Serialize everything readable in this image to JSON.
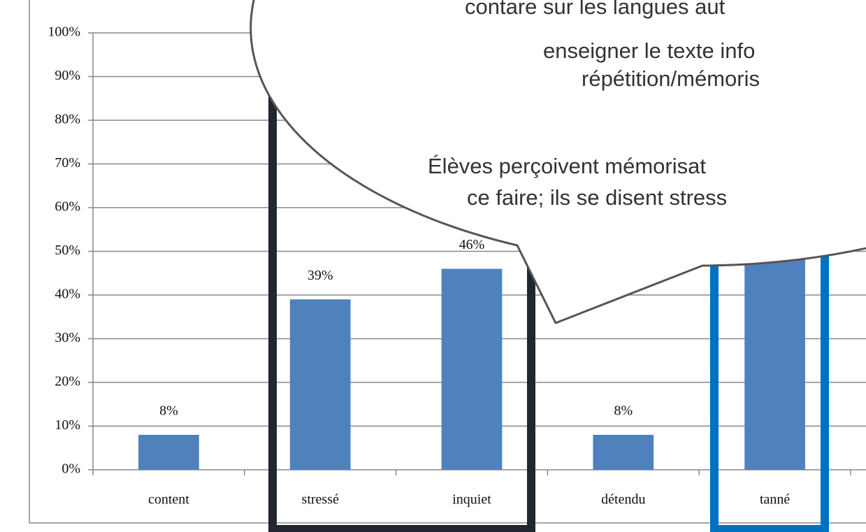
{
  "chart_data": {
    "type": "bar",
    "categories": [
      "content",
      "stressé",
      "inquiet",
      "détendu",
      "tanné"
    ],
    "values": [
      8,
      39,
      46,
      8,
      56
    ],
    "value_labels": [
      "8%",
      "39%",
      "46%",
      "8%",
      null
    ],
    "color": "#4f81bd",
    "ylim": [
      0,
      100
    ],
    "yticks": [
      {
        "value": 0,
        "label": "0%"
      },
      {
        "value": 10,
        "label": "10%"
      },
      {
        "value": 20,
        "label": "20%"
      },
      {
        "value": 30,
        "label": "30%"
      },
      {
        "value": 40,
        "label": "40%"
      },
      {
        "value": 50,
        "label": "50%"
      },
      {
        "value": 60,
        "label": "60%"
      },
      {
        "value": 70,
        "label": "70%"
      },
      {
        "value": 80,
        "label": "80%"
      },
      {
        "value": 90,
        "label": "90%"
      },
      {
        "value": 100,
        "label": "100%"
      }
    ],
    "grid": true,
    "annotations": [
      "contare sur les langues aut",
      "enseigner le texte info",
      "répétition/mémoris",
      "Élèves perçoivent mémorisat",
      "ce faire; ils se disent stress"
    ]
  }
}
